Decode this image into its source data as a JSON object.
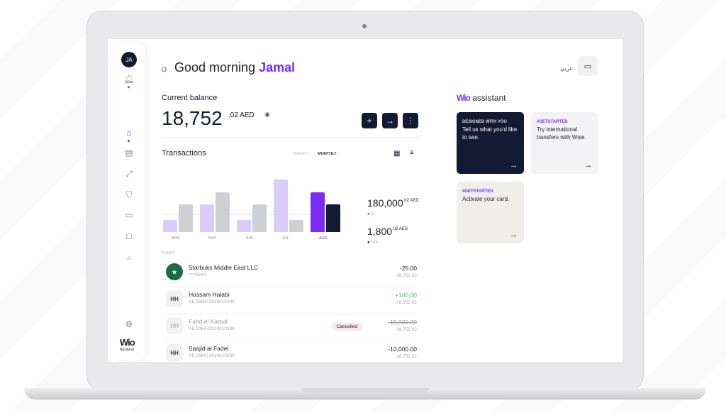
{
  "header": {
    "greeting": "Good morning",
    "name": "Jamal",
    "language": "عربي",
    "avatar_initials": "JA"
  },
  "balance": {
    "label": "Current balance",
    "amount": "18,752",
    "decimals": ".02 AED"
  },
  "transactions": {
    "title": "Transactions",
    "tabs": [
      "WEEKLY",
      "MONTHLY"
    ],
    "active_tab": "MONTHLY",
    "in_total": "180,000",
    "in_decimals": ".02 AED",
    "in_label": "In",
    "out_total": "1,800",
    "out_decimals": ".02 AED",
    "out_label": "Out",
    "section": "TODAY",
    "items": [
      {
        "name": "Starbuks Middle East LLC",
        "sub": "****5643",
        "amount": "-25.00",
        "balance": "18,752.02",
        "avatar": "starbucks",
        "status": ""
      },
      {
        "name": "Hossam Halabi",
        "sub": "AE 298472919010338",
        "amount": "+100,00",
        "balance": "18,852.02",
        "avatar": "HH",
        "status": ""
      },
      {
        "name": "Fahd el Kamal",
        "sub": "AE 298472919010338",
        "amount": "-15,000.00",
        "balance": "18,752.02",
        "avatar": "HH",
        "status": "Cancelled"
      },
      {
        "name": "Saajid al Fadel",
        "sub": "AE 298472919010338",
        "amount": "-10,000.00",
        "balance": "18,752.02",
        "avatar": "HH",
        "status": ""
      }
    ]
  },
  "chart_data": {
    "type": "bar",
    "categories": [
      "APR",
      "MAY",
      "JUN",
      "JUL",
      "AUG"
    ],
    "highlight": "AUG",
    "series": [
      {
        "values": [
          17,
          39,
          17,
          74,
          56
        ]
      },
      {
        "values": [
          39,
          56,
          39,
          17,
          39
        ]
      }
    ],
    "colors": {
      "in": "#d9ccfb",
      "out": "#cfd0d4",
      "in_active": "#7a2cf5",
      "out_active": "#141a33"
    }
  },
  "assistant": {
    "brand": "Wio",
    "title": "assistant",
    "cards": [
      {
        "tag": "DESIGNED WITH YOU",
        "text": "Tell us what you'd like to see."
      },
      {
        "tag": "#GETSTARTED",
        "text": "Try international transfers with Wise."
      },
      {
        "tag": "#GETSTARTED",
        "text": "Activate your card."
      }
    ]
  },
  "brand": {
    "logo": "Wio",
    "sub": "Business",
    "accent": "#7a2cf5",
    "dark": "#141a33"
  }
}
